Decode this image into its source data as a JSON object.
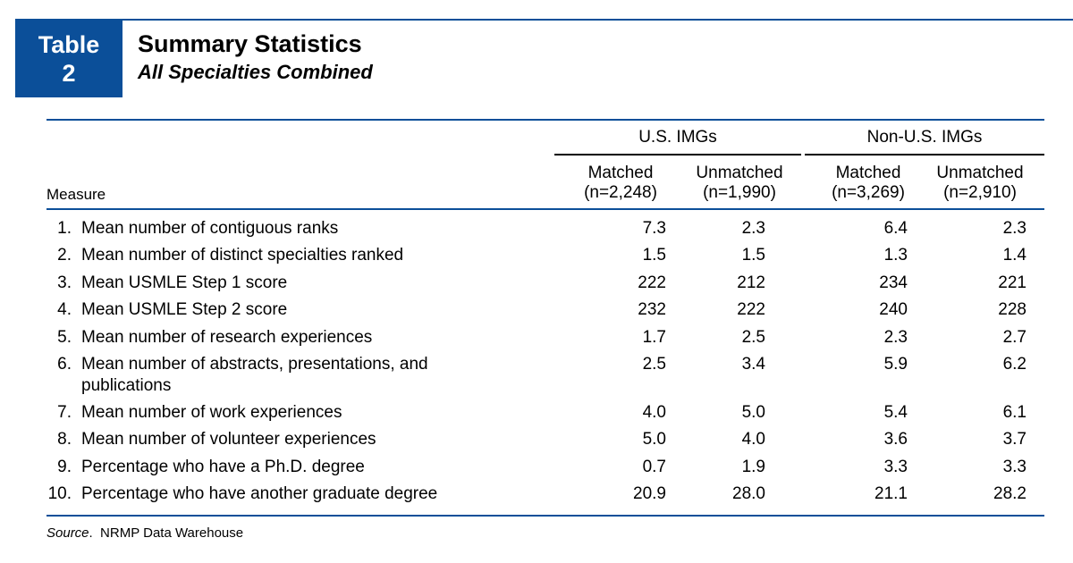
{
  "badge": {
    "line1": "Table",
    "line2": "2"
  },
  "title": "Summary Statistics",
  "subtitle": "All Specialties Combined",
  "groups": [
    {
      "label": "U.S. IMGs"
    },
    {
      "label": "Non-U.S. IMGs"
    }
  ],
  "columns": [
    {
      "line1": "Matched",
      "line2": "(n=2,248)"
    },
    {
      "line1": "Unmatched",
      "line2": "(n=1,990)"
    },
    {
      "line1": "Matched",
      "line2": "(n=3,269)"
    },
    {
      "line1": "Unmatched",
      "line2": "(n=2,910)"
    }
  ],
  "measure_header": "Measure",
  "rows": [
    {
      "num": "1.",
      "label": "Mean number of contiguous ranks",
      "values": [
        "7.3",
        "2.3",
        "6.4",
        "2.3"
      ]
    },
    {
      "num": "2.",
      "label": "Mean number of distinct specialties ranked",
      "values": [
        "1.5",
        "1.5",
        "1.3",
        "1.4"
      ]
    },
    {
      "num": "3.",
      "label": "Mean USMLE Step 1 score",
      "values": [
        "222",
        "212",
        "234",
        "221"
      ]
    },
    {
      "num": "4.",
      "label": "Mean USMLE Step 2 score",
      "values": [
        "232",
        "222",
        "240",
        "228"
      ]
    },
    {
      "num": "5.",
      "label": "Mean number of research experiences",
      "values": [
        "1.7",
        "2.5",
        "2.3",
        "2.7"
      ]
    },
    {
      "num": "6.",
      "label": "Mean number of abstracts, presentations, and",
      "label2": "publications",
      "values": [
        "2.5",
        "3.4",
        "5.9",
        "6.2"
      ]
    },
    {
      "num": "7.",
      "label": "Mean number of work experiences",
      "values": [
        "4.0",
        "5.0",
        "5.4",
        "6.1"
      ]
    },
    {
      "num": "8.",
      "label": "Mean number of volunteer experiences",
      "values": [
        "5.0",
        "4.0",
        "3.6",
        "3.7"
      ]
    },
    {
      "num": "9.",
      "label": "Percentage who have a Ph.D. degree",
      "values": [
        "0.7",
        "1.9",
        "3.3",
        "3.3"
      ]
    },
    {
      "num": "10.",
      "label": "Percentage who have another graduate degree",
      "values": [
        "20.9",
        "28.0",
        "21.1",
        "28.2"
      ]
    }
  ],
  "source": {
    "label": "Source",
    "text": "NRMP Data Warehouse"
  },
  "colors": {
    "accent": "#0b4f99"
  }
}
